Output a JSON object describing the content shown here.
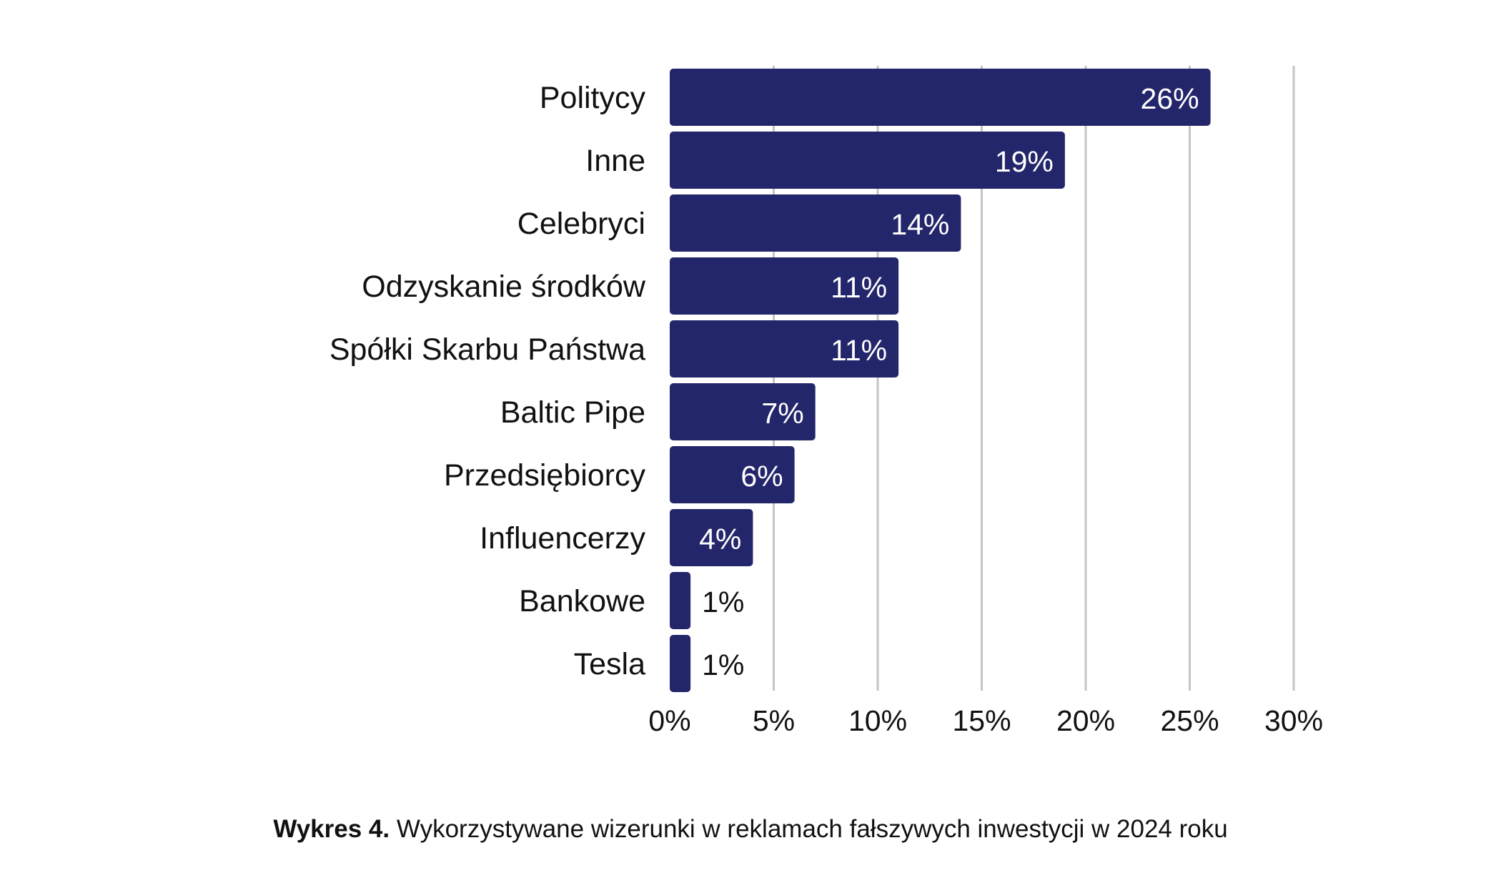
{
  "chart_data": {
    "type": "bar",
    "orientation": "horizontal",
    "categories": [
      "Politycy",
      "Inne",
      "Celebryci",
      "Odzyskanie środków",
      "Spółki Skarbu Państwa",
      "Baltic Pipe",
      "Przedsiębiorcy",
      "Influencerzy",
      "Bankowe",
      "Tesla"
    ],
    "values": [
      26,
      19,
      14,
      11,
      11,
      7,
      6,
      4,
      1,
      1
    ],
    "value_labels": [
      "26%",
      "19%",
      "14%",
      "11%",
      "11%",
      "7%",
      "6%",
      "4%",
      "1%",
      "1%"
    ],
    "xlim": [
      0,
      30
    ],
    "x_ticks": [
      0,
      5,
      10,
      15,
      20,
      25,
      30
    ],
    "x_tick_labels": [
      "0%",
      "5%",
      "10%",
      "15%",
      "20%",
      "25%",
      "30%"
    ],
    "grid": "vertical",
    "legend": "none",
    "title": "",
    "xlabel": "",
    "ylabel": "",
    "bar_color": "#23266a",
    "gridline_color": "#c4c4c4",
    "inside_label_color": "#ffffff",
    "outside_label_color": "#111111"
  },
  "caption": {
    "prefix": "Wykres 4.",
    "text": "Wykorzystywane wizerunki w reklamach fałszywych inwestycji w 2024 roku"
  }
}
